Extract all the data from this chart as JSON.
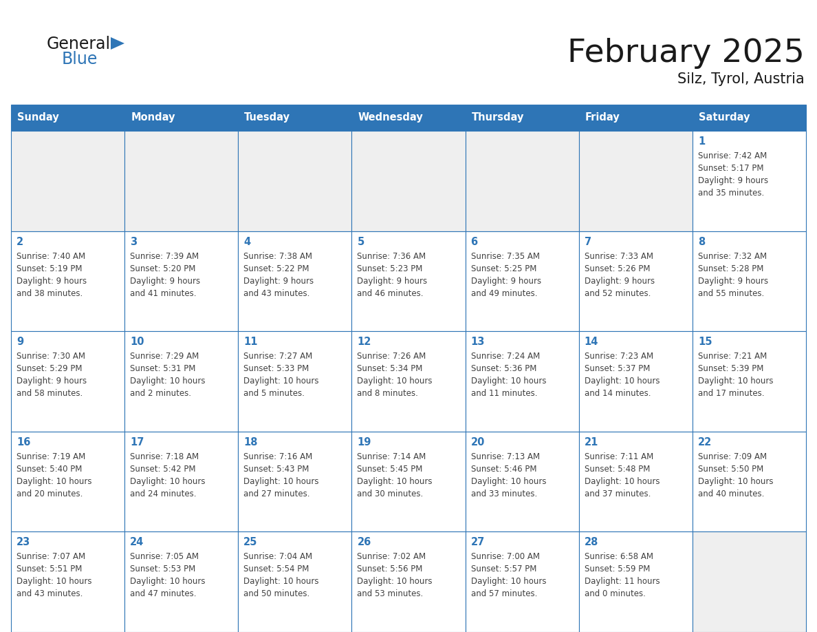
{
  "title": "February 2025",
  "subtitle": "Silz, Tyrol, Austria",
  "header_bg": "#2E75B6",
  "header_text_color": "#FFFFFF",
  "cell_bg": "#FFFFFF",
  "empty_cell_bg": "#EFEFEF",
  "cell_border_color": "#2E75B6",
  "day_number_color": "#2E75B6",
  "cell_text_color": "#404040",
  "days_of_week": [
    "Sunday",
    "Monday",
    "Tuesday",
    "Wednesday",
    "Thursday",
    "Friday",
    "Saturday"
  ],
  "calendar_data": [
    [
      null,
      null,
      null,
      null,
      null,
      null,
      {
        "day": 1,
        "sunrise": "7:42 AM",
        "sunset": "5:17 PM",
        "daylight": "9 hours\nand 35 minutes."
      }
    ],
    [
      {
        "day": 2,
        "sunrise": "7:40 AM",
        "sunset": "5:19 PM",
        "daylight": "9 hours\nand 38 minutes."
      },
      {
        "day": 3,
        "sunrise": "7:39 AM",
        "sunset": "5:20 PM",
        "daylight": "9 hours\nand 41 minutes."
      },
      {
        "day": 4,
        "sunrise": "7:38 AM",
        "sunset": "5:22 PM",
        "daylight": "9 hours\nand 43 minutes."
      },
      {
        "day": 5,
        "sunrise": "7:36 AM",
        "sunset": "5:23 PM",
        "daylight": "9 hours\nand 46 minutes."
      },
      {
        "day": 6,
        "sunrise": "7:35 AM",
        "sunset": "5:25 PM",
        "daylight": "9 hours\nand 49 minutes."
      },
      {
        "day": 7,
        "sunrise": "7:33 AM",
        "sunset": "5:26 PM",
        "daylight": "9 hours\nand 52 minutes."
      },
      {
        "day": 8,
        "sunrise": "7:32 AM",
        "sunset": "5:28 PM",
        "daylight": "9 hours\nand 55 minutes."
      }
    ],
    [
      {
        "day": 9,
        "sunrise": "7:30 AM",
        "sunset": "5:29 PM",
        "daylight": "9 hours\nand 58 minutes."
      },
      {
        "day": 10,
        "sunrise": "7:29 AM",
        "sunset": "5:31 PM",
        "daylight": "10 hours\nand 2 minutes."
      },
      {
        "day": 11,
        "sunrise": "7:27 AM",
        "sunset": "5:33 PM",
        "daylight": "10 hours\nand 5 minutes."
      },
      {
        "day": 12,
        "sunrise": "7:26 AM",
        "sunset": "5:34 PM",
        "daylight": "10 hours\nand 8 minutes."
      },
      {
        "day": 13,
        "sunrise": "7:24 AM",
        "sunset": "5:36 PM",
        "daylight": "10 hours\nand 11 minutes."
      },
      {
        "day": 14,
        "sunrise": "7:23 AM",
        "sunset": "5:37 PM",
        "daylight": "10 hours\nand 14 minutes."
      },
      {
        "day": 15,
        "sunrise": "7:21 AM",
        "sunset": "5:39 PM",
        "daylight": "10 hours\nand 17 minutes."
      }
    ],
    [
      {
        "day": 16,
        "sunrise": "7:19 AM",
        "sunset": "5:40 PM",
        "daylight": "10 hours\nand 20 minutes."
      },
      {
        "day": 17,
        "sunrise": "7:18 AM",
        "sunset": "5:42 PM",
        "daylight": "10 hours\nand 24 minutes."
      },
      {
        "day": 18,
        "sunrise": "7:16 AM",
        "sunset": "5:43 PM",
        "daylight": "10 hours\nand 27 minutes."
      },
      {
        "day": 19,
        "sunrise": "7:14 AM",
        "sunset": "5:45 PM",
        "daylight": "10 hours\nand 30 minutes."
      },
      {
        "day": 20,
        "sunrise": "7:13 AM",
        "sunset": "5:46 PM",
        "daylight": "10 hours\nand 33 minutes."
      },
      {
        "day": 21,
        "sunrise": "7:11 AM",
        "sunset": "5:48 PM",
        "daylight": "10 hours\nand 37 minutes."
      },
      {
        "day": 22,
        "sunrise": "7:09 AM",
        "sunset": "5:50 PM",
        "daylight": "10 hours\nand 40 minutes."
      }
    ],
    [
      {
        "day": 23,
        "sunrise": "7:07 AM",
        "sunset": "5:51 PM",
        "daylight": "10 hours\nand 43 minutes."
      },
      {
        "day": 24,
        "sunrise": "7:05 AM",
        "sunset": "5:53 PM",
        "daylight": "10 hours\nand 47 minutes."
      },
      {
        "day": 25,
        "sunrise": "7:04 AM",
        "sunset": "5:54 PM",
        "daylight": "10 hours\nand 50 minutes."
      },
      {
        "day": 26,
        "sunrise": "7:02 AM",
        "sunset": "5:56 PM",
        "daylight": "10 hours\nand 53 minutes."
      },
      {
        "day": 27,
        "sunrise": "7:00 AM",
        "sunset": "5:57 PM",
        "daylight": "10 hours\nand 57 minutes."
      },
      {
        "day": 28,
        "sunrise": "6:58 AM",
        "sunset": "5:59 PM",
        "daylight": "11 hours\nand 0 minutes."
      },
      null
    ]
  ],
  "logo_color_general": "#1a1a1a",
  "logo_color_blue": "#2E75B6",
  "logo_triangle_color": "#2E75B6",
  "fig_width": 11.88,
  "fig_height": 9.18,
  "dpi": 100
}
